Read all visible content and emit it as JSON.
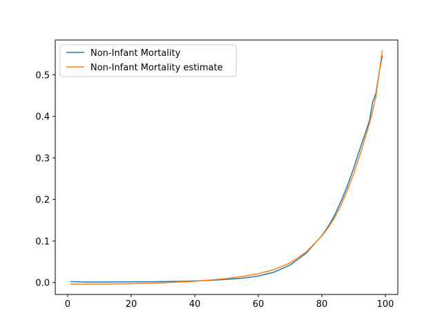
{
  "chart_data": {
    "type": "line",
    "title": "",
    "xlabel": "",
    "ylabel": "",
    "xlim": [
      -3.9,
      103.9
    ],
    "ylim": [
      -0.0288,
      0.5838
    ],
    "xticks": [
      0,
      20,
      40,
      60,
      80,
      100
    ],
    "yticks": [
      0.0,
      0.1,
      0.2,
      0.3,
      0.4,
      0.5
    ],
    "xtick_labels": [
      "0",
      "20",
      "40",
      "60",
      "80",
      "100"
    ],
    "ytick_labels": [
      "0.0",
      "0.1",
      "0.2",
      "0.3",
      "0.4",
      "0.5"
    ],
    "grid": false,
    "legend_position": "upper-left",
    "series": [
      {
        "name": "Non-Infant Mortality",
        "color": "#1f77b4",
        "x": [
          1,
          5,
          10,
          15,
          20,
          25,
          30,
          35,
          40,
          45,
          50,
          55,
          60,
          65,
          70,
          75,
          80,
          82,
          84,
          86,
          88,
          90,
          92,
          94,
          95,
          96,
          97,
          98,
          99
        ],
        "y": [
          0.002,
          0.0012,
          0.001,
          0.0012,
          0.0015,
          0.0018,
          0.0022,
          0.0028,
          0.0037,
          0.005,
          0.0075,
          0.0105,
          0.0155,
          0.025,
          0.042,
          0.07,
          0.113,
          0.135,
          0.162,
          0.195,
          0.232,
          0.275,
          0.322,
          0.367,
          0.39,
          0.435,
          0.455,
          0.505,
          0.545
        ]
      },
      {
        "name": "Non-Infant Mortality estimate",
        "color": "#ff7f0e",
        "x": [
          1,
          5,
          10,
          15,
          20,
          25,
          30,
          35,
          40,
          45,
          50,
          55,
          60,
          65,
          70,
          75,
          80,
          82,
          84,
          86,
          88,
          90,
          92,
          94,
          95,
          96,
          97,
          98,
          99
        ],
        "y": [
          -0.004,
          -0.004,
          -0.0038,
          -0.0035,
          -0.003,
          -0.002,
          -0.0008,
          0.001,
          0.003,
          0.006,
          0.0095,
          0.0145,
          0.021,
          0.031,
          0.047,
          0.073,
          0.112,
          0.132,
          0.156,
          0.186,
          0.222,
          0.262,
          0.308,
          0.357,
          0.383,
          0.413,
          0.448,
          0.503,
          0.558
        ]
      }
    ]
  }
}
